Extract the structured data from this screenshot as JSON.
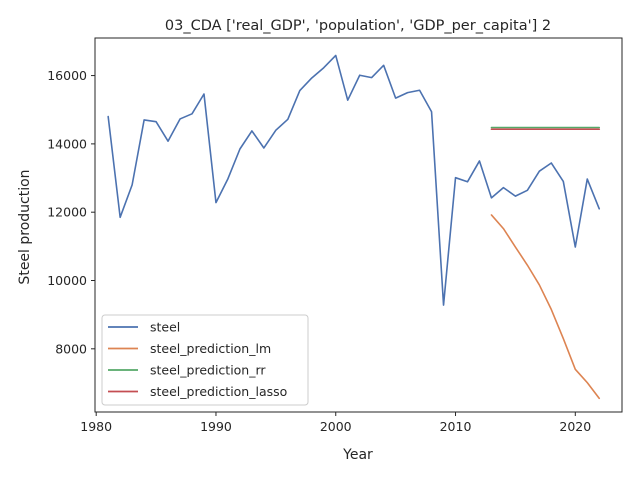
{
  "chart_data": {
    "type": "line",
    "title": "03_CDA ['real_GDP', 'population', 'GDP_per_capita'] 2",
    "xlabel": "Year",
    "ylabel": "Steel production",
    "xlim": [
      1979.9,
      2023.9
    ],
    "ylim": [
      6150,
      17100
    ],
    "xticks": [
      1980,
      1990,
      2000,
      2010,
      2020
    ],
    "yticks": [
      8000,
      10000,
      12000,
      14000,
      16000
    ],
    "grid": false,
    "legend_position": "lower-left",
    "series": [
      {
        "name": "steel",
        "color": "#4c72b0",
        "x": [
          1981,
          1982,
          1983,
          1984,
          1985,
          1986,
          1987,
          1988,
          1989,
          1990,
          1991,
          1992,
          1993,
          1994,
          1995,
          1996,
          1997,
          1998,
          1999,
          2000,
          2001,
          2002,
          2003,
          2004,
          2005,
          2006,
          2007,
          2008,
          2009,
          2010,
          2011,
          2012,
          2013,
          2014,
          2015,
          2016,
          2017,
          2018,
          2019,
          2020,
          2021,
          2022
        ],
        "y": [
          14800,
          11850,
          12800,
          14700,
          14650,
          14080,
          14730,
          14880,
          15460,
          12280,
          12980,
          13850,
          14380,
          13880,
          14400,
          14720,
          15560,
          15930,
          16230,
          16590,
          15280,
          16010,
          15940,
          16300,
          15340,
          15500,
          15570,
          14940,
          9280,
          13010,
          12890,
          13500,
          12420,
          12720,
          12470,
          12640,
          13200,
          13440,
          12900,
          10980,
          12970,
          12100
        ]
      },
      {
        "name": "steel_prediction_lm",
        "color": "#dd8452",
        "x": [
          2013,
          2014,
          2015,
          2016,
          2017,
          2018,
          2019,
          2020,
          2021,
          2022
        ],
        "y": [
          11920,
          11520,
          10980,
          10450,
          9870,
          9150,
          8300,
          7400,
          7010,
          6550
        ]
      },
      {
        "name": "steel_prediction_rr",
        "color": "#55a868",
        "x": [
          2013,
          2014,
          2015,
          2016,
          2017,
          2018,
          2019,
          2020,
          2021,
          2022
        ],
        "y": [
          14480,
          14480,
          14480,
          14480,
          14480,
          14480,
          14480,
          14480,
          14480,
          14480
        ]
      },
      {
        "name": "steel_prediction_lasso",
        "color": "#c44e52",
        "x": [
          2013,
          2014,
          2015,
          2016,
          2017,
          2018,
          2019,
          2020,
          2021,
          2022
        ],
        "y": [
          14430,
          14430,
          14430,
          14430,
          14430,
          14430,
          14430,
          14430,
          14430,
          14430
        ]
      }
    ]
  }
}
